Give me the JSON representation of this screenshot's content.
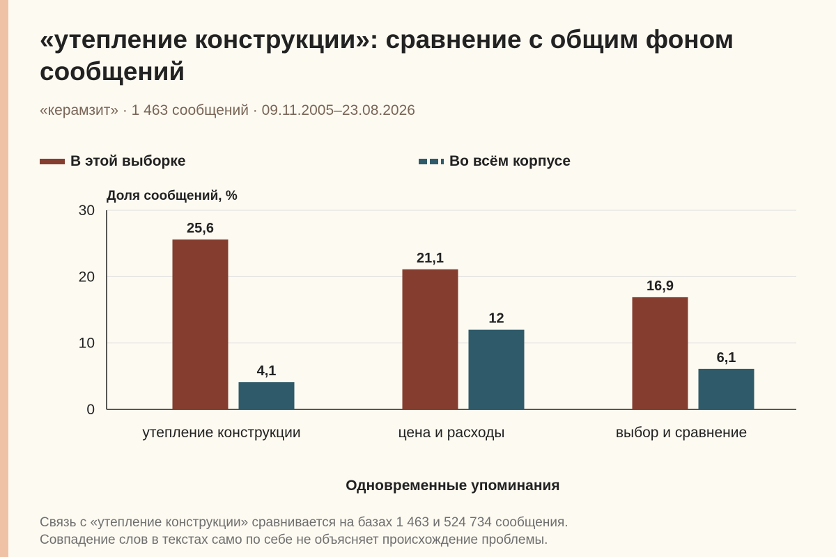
{
  "title": "«утепление конструкции»: сравнение с общим фоном сообщений",
  "subtitle": "«керамзит» · 1 463 сообщений · 09.11.2005–23.08.2026",
  "legend": [
    {
      "label": "В этой выборке",
      "color": "#843d2f",
      "style": "solid"
    },
    {
      "label": "Во всём корпусе",
      "color": "#2f5a69",
      "style": "dashed"
    }
  ],
  "note": [
    "Связь с «утепление конструкции» сравнивается на базах 1 463 и 524 734 сообщения.",
    "Совпадение слов в текстах само по себе не объясняет происхождение проблемы."
  ],
  "chart_data": {
    "type": "bar",
    "title": "«утепление конструкции»: сравнение с общим фоном сообщений",
    "xlabel": "Одновременные упоминания",
    "ylabel": "Доля сообщений, %",
    "categories": [
      "утепление конструкции",
      "цена и расходы",
      "выбор и сравнение"
    ],
    "series": [
      {
        "name": "В этой выборке",
        "values": [
          25.6,
          21.1,
          16.9
        ],
        "labels": [
          "25,6",
          "21,1",
          "16,9"
        ],
        "color": "#843d2f"
      },
      {
        "name": "Во всём корпусе",
        "values": [
          4.1,
          12,
          6.1
        ],
        "labels": [
          "4,1",
          "12",
          "6,1"
        ],
        "color": "#2f5a69"
      }
    ],
    "ylim": [
      0,
      30
    ],
    "yticks": [
      0,
      10,
      20,
      30
    ],
    "grid": true,
    "legend_position": "top-left"
  }
}
